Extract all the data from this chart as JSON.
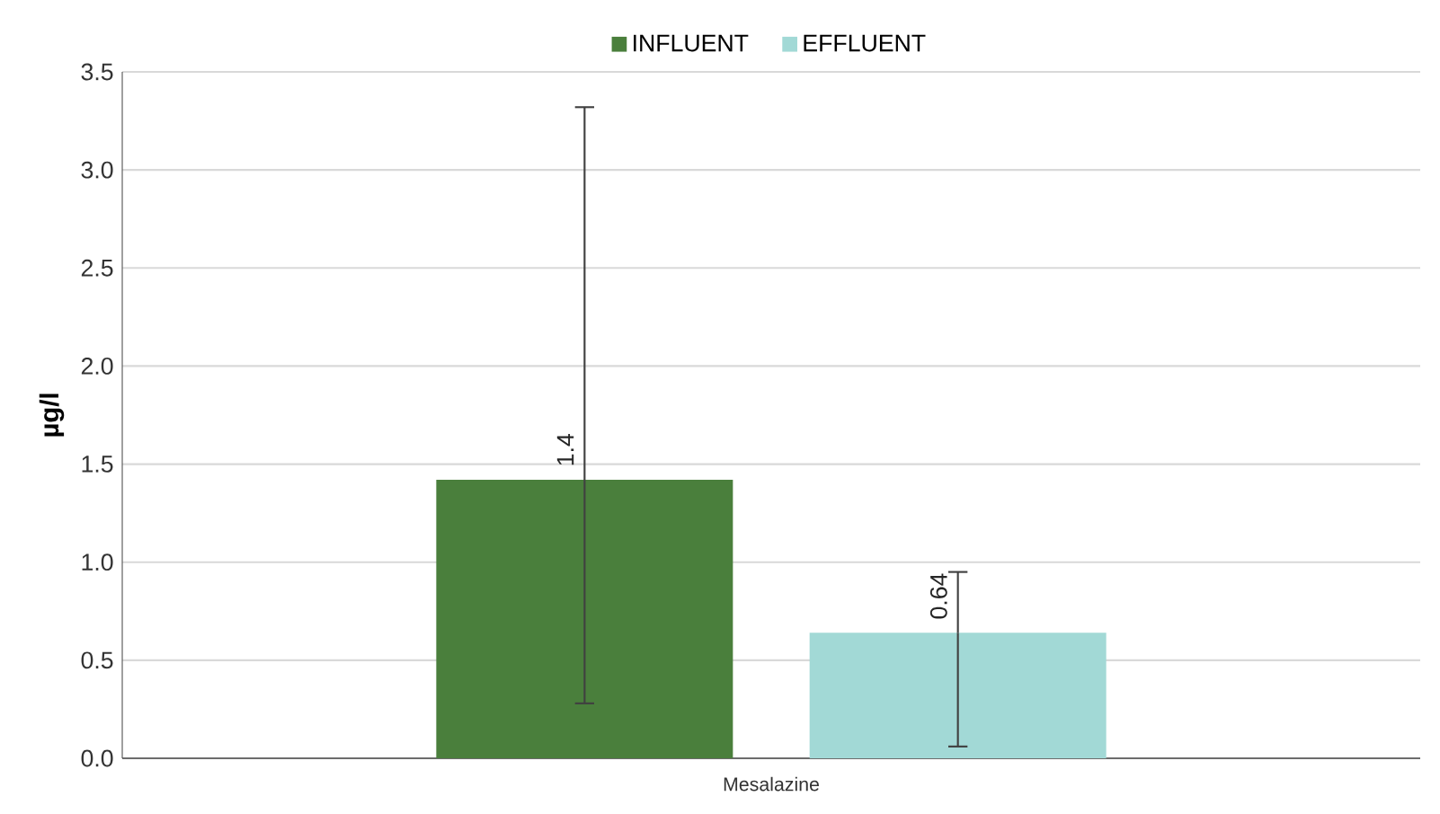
{
  "chart_data": {
    "type": "bar",
    "ylabel": "µg/l",
    "categories": [
      "Mesalazine"
    ],
    "series": [
      {
        "name": "INFLUENT",
        "color": "#4a7f3c",
        "values": [
          1.42
        ],
        "value_labels": [
          "1.4"
        ],
        "errors": [
          [
            0.28,
            3.32
          ]
        ]
      },
      {
        "name": "EFFLUENT",
        "color": "#a2d9d6",
        "values": [
          0.64
        ],
        "value_labels": [
          "0.64"
        ],
        "errors": [
          [
            0.06,
            0.95
          ]
        ]
      }
    ],
    "ylim": [
      0,
      3.5
    ],
    "yticks": [
      {
        "value": 0,
        "label": "0.0"
      },
      {
        "value": 0.5,
        "label": "0.5"
      },
      {
        "value": 1,
        "label": "1.0"
      },
      {
        "value": 1.5,
        "label": "1.5"
      },
      {
        "value": 2,
        "label": "2.0"
      },
      {
        "value": 2.5,
        "label": "2.5"
      },
      {
        "value": 3,
        "label": "3.0"
      },
      {
        "value": 3.5,
        "label": "3.5"
      }
    ],
    "grid": "y",
    "legend": "top"
  }
}
